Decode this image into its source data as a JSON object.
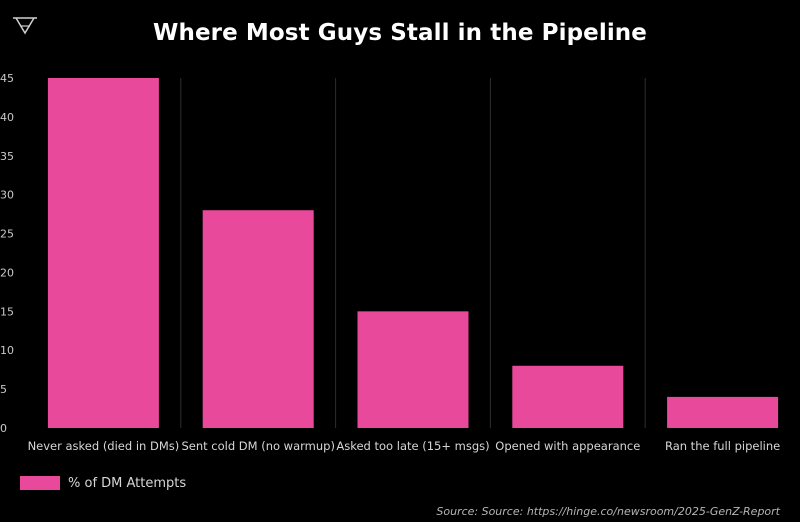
{
  "chart_data": {
    "type": "bar",
    "title": "Where Most Guys Stall in the Pipeline",
    "categories": [
      "Never asked (died in DMs)",
      "Sent cold DM (no warmup)",
      "Asked too late (15+ msgs)",
      "Opened with appearance",
      "Ran the full pipeline"
    ],
    "series": [
      {
        "name": "% of DM Attempts",
        "values": [
          45,
          28,
          15,
          8,
          4
        ]
      }
    ],
    "ylim": [
      0,
      45
    ],
    "yticks": [
      0,
      5,
      10,
      15,
      20,
      25,
      30,
      35,
      40,
      45
    ],
    "grid": "vertical category separators",
    "legend_position": "bottom-left",
    "bar_color": "#e8499a",
    "background_color": "#000000",
    "source": "Source: Source: https://hinge.co/newsroom/2025-GenZ-Report"
  },
  "logo": {
    "icon": "triangle-down-logo-icon"
  }
}
